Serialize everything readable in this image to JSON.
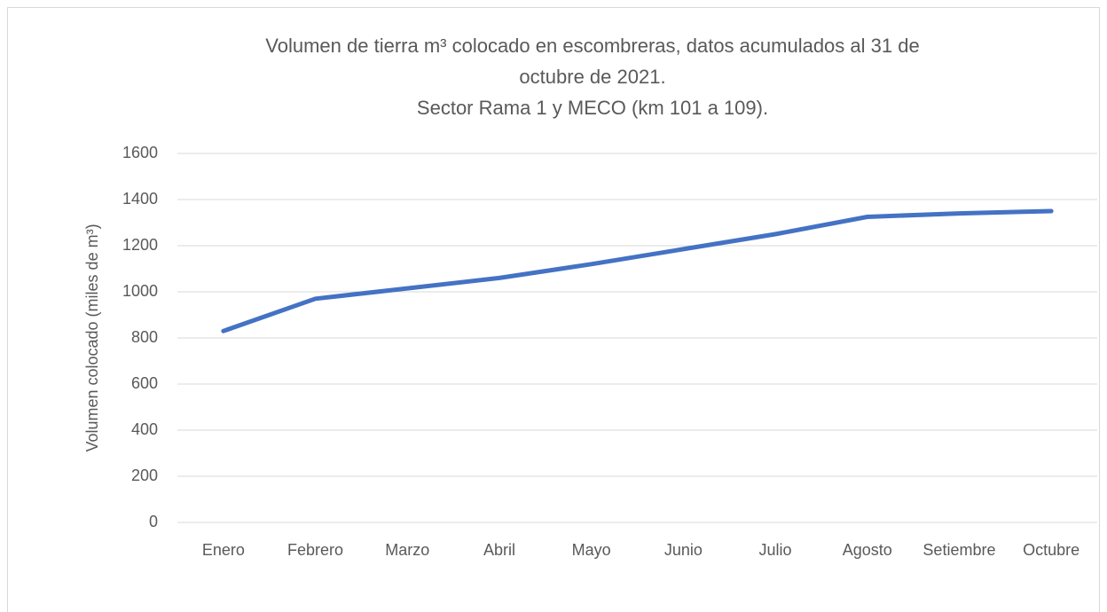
{
  "chart_data": {
    "type": "line",
    "title": [
      "Volumen de tierra m³ colocado en escombreras, datos acumulados al 31 de",
      "octubre de 2021.",
      "Sector Rama 1 y MECO (km 101 a 109)."
    ],
    "y_label": "Volumen colocado (miles de m³)",
    "categories": [
      "Enero",
      "Febrero",
      "Marzo",
      "Abril",
      "Mayo",
      "Junio",
      "Julio",
      "Agosto",
      "Setiembre",
      "Octubre"
    ],
    "series": [
      {
        "color": "#4472c4",
        "values": [
          830,
          970,
          1015,
          1060,
          1120,
          1185,
          1250,
          1325,
          1340,
          1350
        ]
      }
    ],
    "ylim": [
      0,
      1600
    ],
    "yticks": [
      0,
      200,
      400,
      600,
      800,
      1000,
      1200,
      1400,
      1600
    ],
    "grid": true
  }
}
